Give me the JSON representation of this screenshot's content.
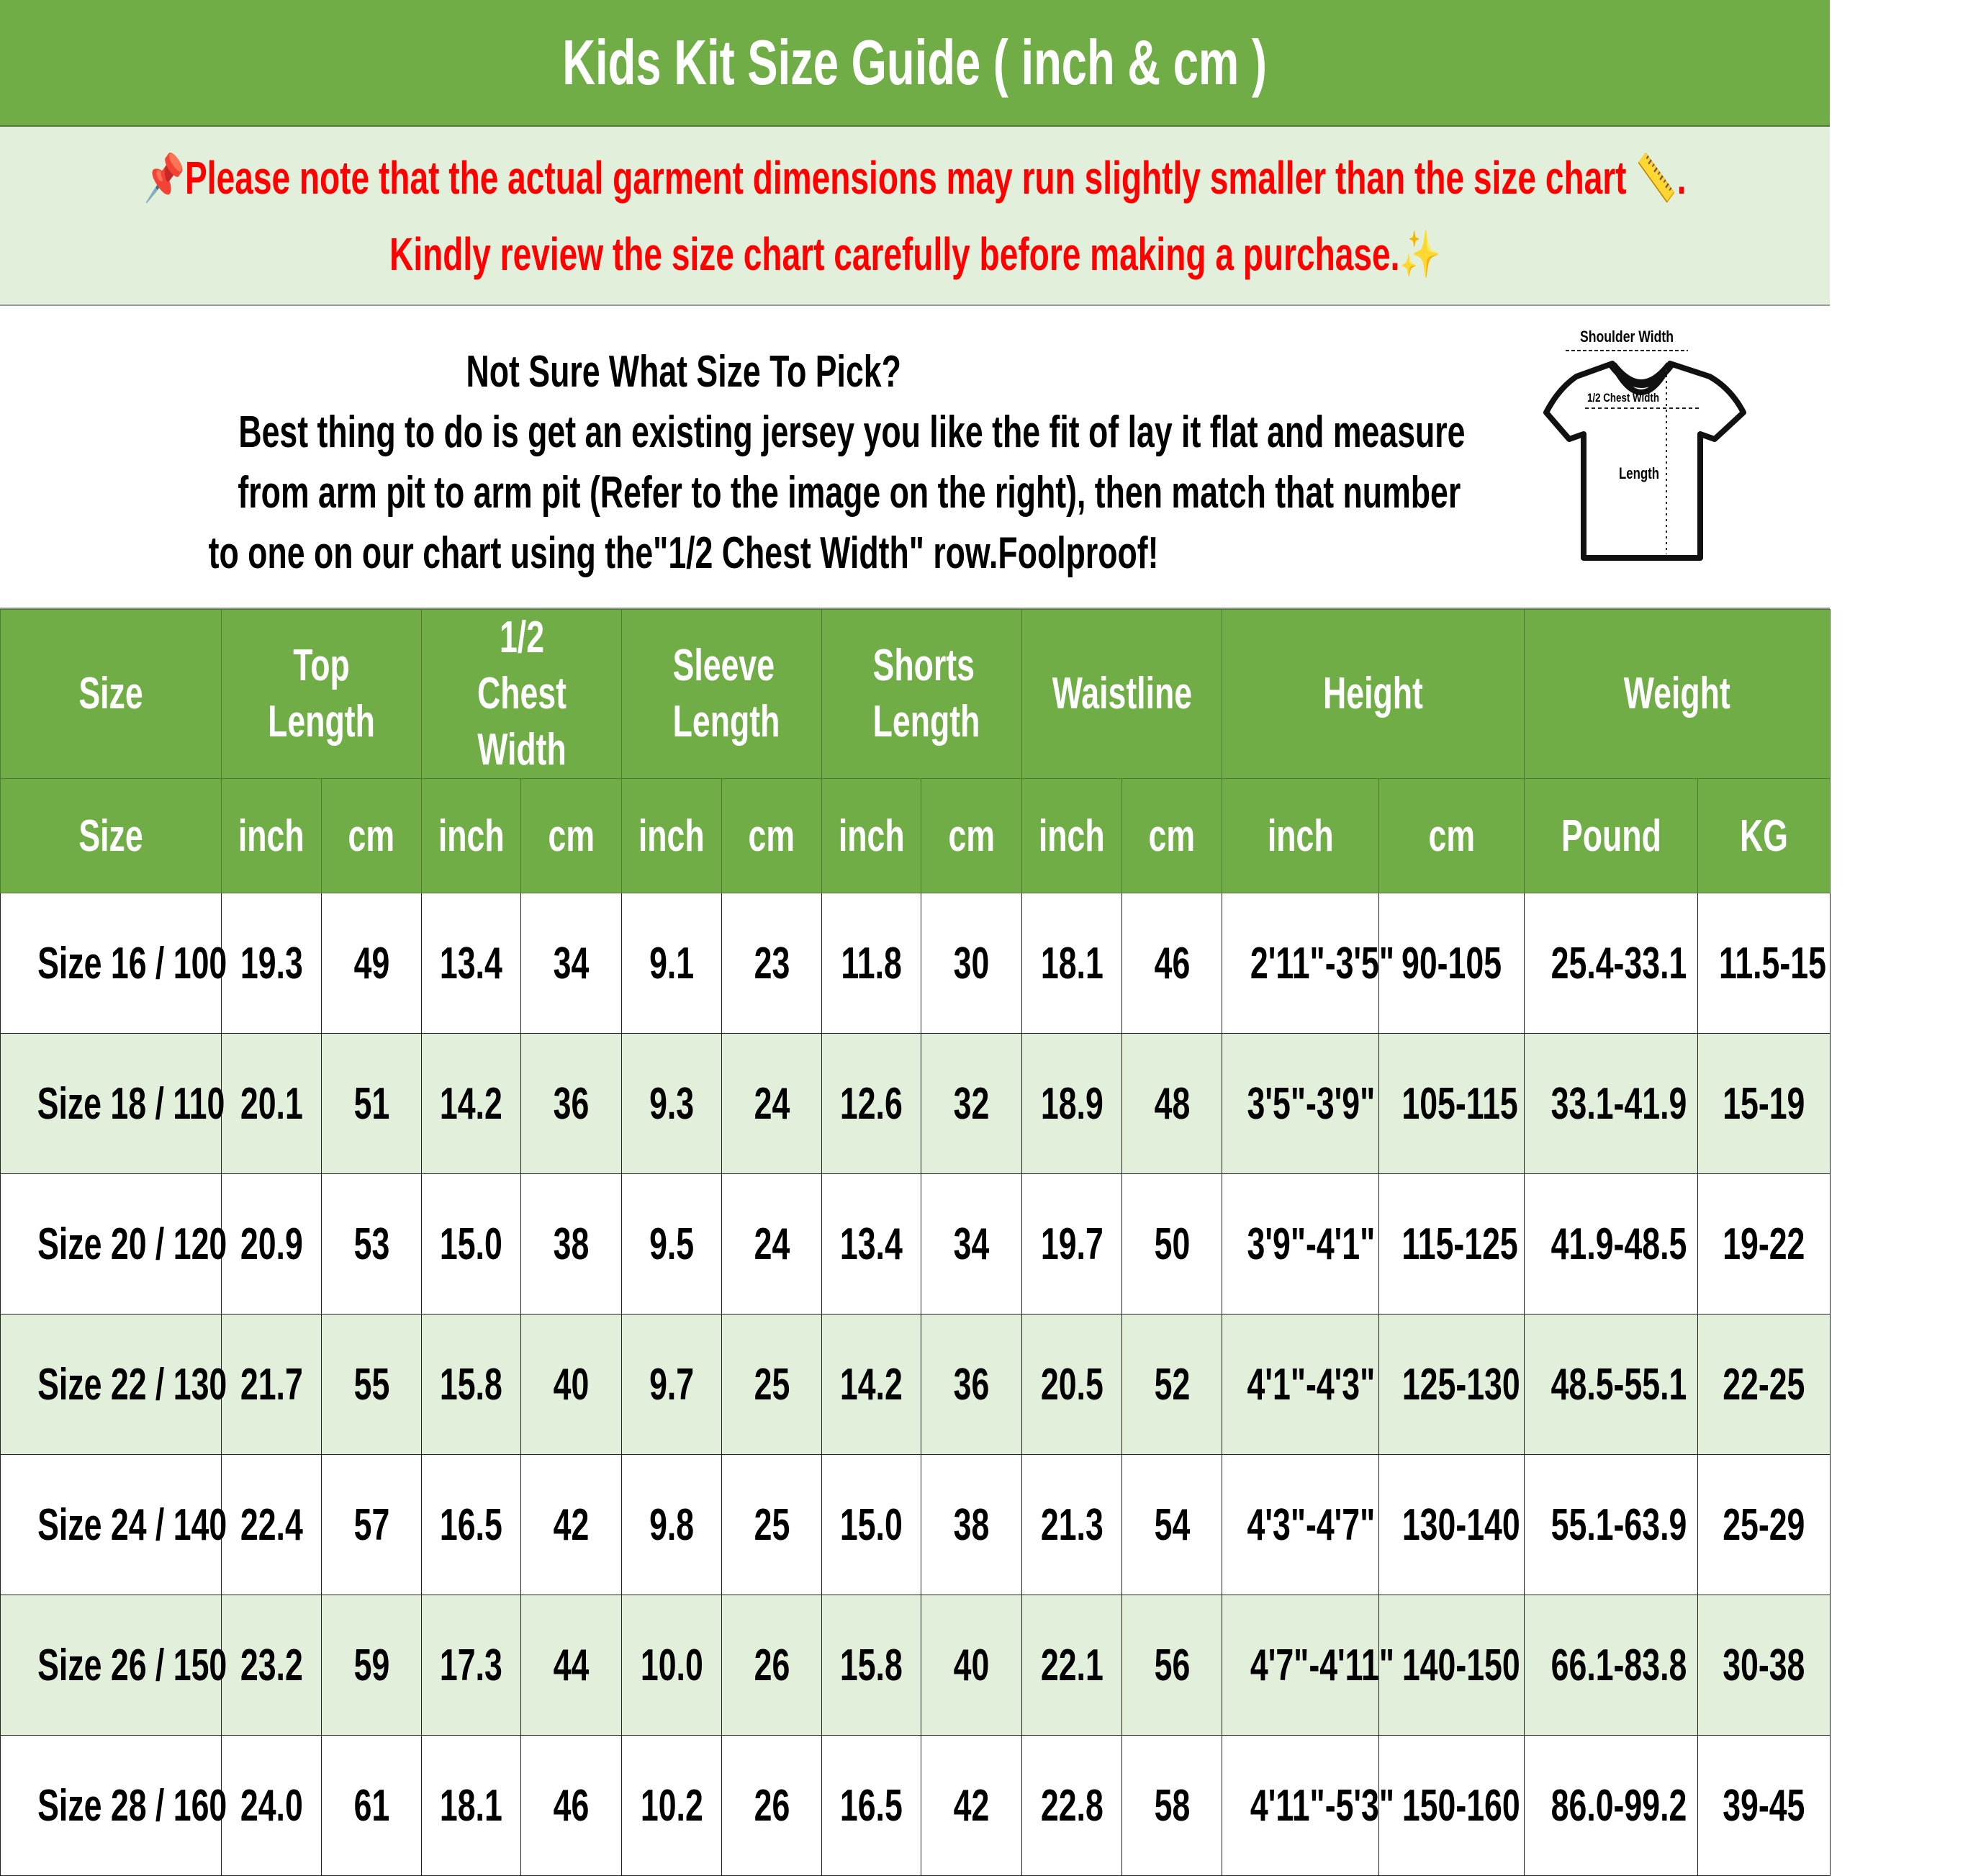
{
  "title": "Kids Kit Size Guide ( inch & cm )",
  "note": {
    "line1": "Please note that the actual garment dimensions may run slightly smaller than the size chart",
    "line1_end": ".",
    "line2": "Kindly review the size chart carefully before making a purchase.",
    "icons": [
      "pushpin-icon",
      "ruler-icon",
      "sparkles-icon"
    ]
  },
  "info": {
    "heading": "Not Sure What Size To Pick?",
    "lines": [
      "Best thing to do is get an existing jersey you like the fit of lay it flat and measure",
      "from arm pit to arm pit (Refer to the image on the right), then match that number",
      "to one on our chart using the\"1/2 Chest Width\" row.Foolproof!"
    ]
  },
  "diagram": {
    "shoulder": "Shoulder Width",
    "chest": "1/2 Chest Width",
    "length": "Length"
  },
  "colors": {
    "header_green": "#70AD47",
    "light_green": "#E2EFDA",
    "note_red": "#FF0000"
  },
  "table": {
    "groups": [
      "Size",
      "Top Length",
      "1/2 Chest Width",
      "Sleeve Length",
      "Shorts Length",
      "Waistline",
      "Height",
      "Weight"
    ],
    "units": [
      "Size",
      "inch",
      "cm",
      "inch",
      "cm",
      "inch",
      "cm",
      "inch",
      "cm",
      "inch",
      "cm",
      "inch",
      "cm",
      "Pound",
      "KG"
    ],
    "rows": [
      [
        "Size 16 / 100",
        "19.3",
        "49",
        "13.4",
        "34",
        "9.1",
        "23",
        "11.8",
        "30",
        "18.1",
        "46",
        "2'11\"-3'5\"",
        "90-105",
        "25.4-33.1",
        "11.5-15"
      ],
      [
        "Size 18 / 110",
        "20.1",
        "51",
        "14.2",
        "36",
        "9.3",
        "24",
        "12.6",
        "32",
        "18.9",
        "48",
        "3'5\"-3'9\"",
        "105-115",
        "33.1-41.9",
        "15-19"
      ],
      [
        "Size 20 / 120",
        "20.9",
        "53",
        "15.0",
        "38",
        "9.5",
        "24",
        "13.4",
        "34",
        "19.7",
        "50",
        "3'9\"-4'1\"",
        "115-125",
        "41.9-48.5",
        "19-22"
      ],
      [
        "Size 22 / 130",
        "21.7",
        "55",
        "15.8",
        "40",
        "9.7",
        "25",
        "14.2",
        "36",
        "20.5",
        "52",
        "4'1\"-4'3\"",
        "125-130",
        "48.5-55.1",
        "22-25"
      ],
      [
        "Size 24 / 140",
        "22.4",
        "57",
        "16.5",
        "42",
        "9.8",
        "25",
        "15.0",
        "38",
        "21.3",
        "54",
        "4'3\"-4'7\"",
        "130-140",
        "55.1-63.9",
        "25-29"
      ],
      [
        "Size 26 / 150",
        "23.2",
        "59",
        "17.3",
        "44",
        "10.0",
        "26",
        "15.8",
        "40",
        "22.1",
        "56",
        "4'7\"-4'11\"",
        "140-150",
        "66.1-83.8",
        "30-38"
      ],
      [
        "Size 28 / 160",
        "24.0",
        "61",
        "18.1",
        "46",
        "10.2",
        "26",
        "16.5",
        "42",
        "22.8",
        "58",
        "4'11\"-5'3\"",
        "150-160",
        "86.0-99.2",
        "39-45"
      ]
    ]
  }
}
